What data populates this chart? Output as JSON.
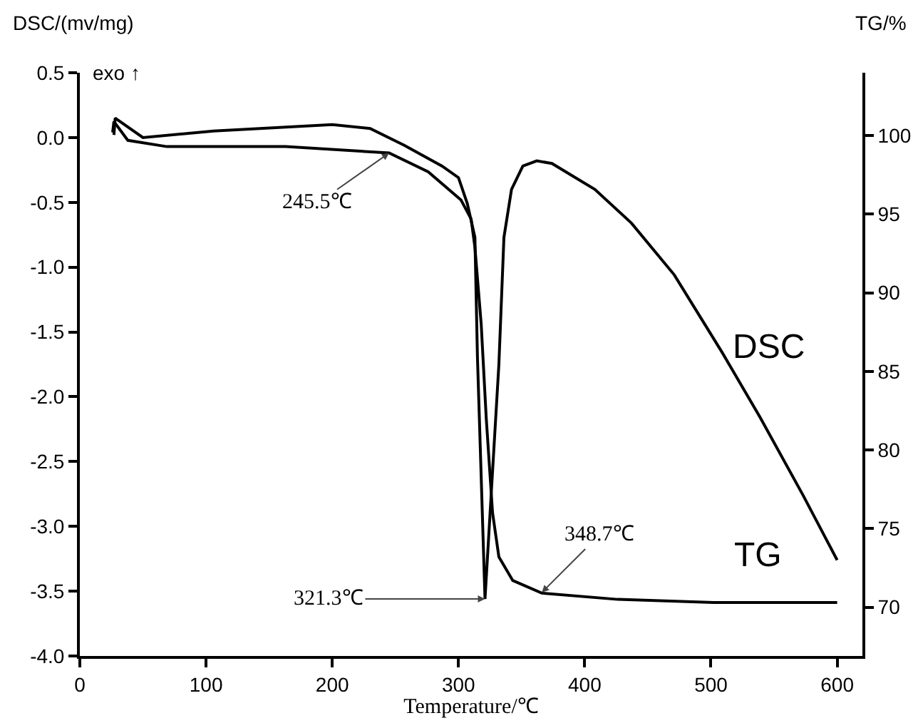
{
  "chart_data": {
    "type": "line",
    "xlabel": "Temperature/℃",
    "ylabel": "DSC/(mv/mg)",
    "y2label": "TG/%",
    "xlim": [
      0,
      620
    ],
    "xticks": [
      0,
      100,
      200,
      300,
      400,
      500,
      600
    ],
    "ylim": [
      -4,
      0.5
    ],
    "yticks": [
      {
        "value": -4,
        "label": "-4.0"
      },
      {
        "value": -3.5,
        "label": "-3.5"
      },
      {
        "value": -3,
        "label": "-3.0"
      },
      {
        "value": -2.5,
        "label": "-2.5"
      },
      {
        "value": -2,
        "label": "-2.0"
      },
      {
        "value": -1.5,
        "label": "-1.5"
      },
      {
        "value": -1,
        "label": "-1.0"
      },
      {
        "value": -0.5,
        "label": "-0.5"
      },
      {
        "value": 0,
        "label": "0.0"
      },
      {
        "value": 0.5,
        "label": "0.5"
      }
    ],
    "y2lim": [
      66.9,
      104
    ],
    "y2ticks": [
      70,
      75,
      80,
      85,
      90,
      95,
      100
    ],
    "grid": false,
    "legend": false,
    "marker": "none",
    "line_style": "solid",
    "series": [
      {
        "name": "DSC",
        "color": "#000000",
        "x": [
          27,
          28,
          50,
          106,
          200,
          230,
          257,
          287,
          300,
          307,
          313,
          315,
          321,
          332,
          336,
          342,
          351,
          362,
          374,
          408,
          437,
          471,
          509,
          539,
          573,
          600
        ],
        "values": [
          0.02,
          0.15,
          0.0,
          0.05,
          0.1,
          0.07,
          -0.06,
          -0.22,
          -0.31,
          -0.51,
          -0.77,
          -1.69,
          -3.56,
          -1.75,
          -0.77,
          -0.4,
          -0.22,
          -0.18,
          -0.2,
          -0.4,
          -0.66,
          -1.06,
          -1.66,
          -2.16,
          -2.76,
          -3.26
        ]
      },
      {
        "name": "TG",
        "color": "#000000",
        "axis": "y2",
        "x": [
          26,
          27,
          38,
          69,
          163,
          245,
          276,
          302,
          310,
          313,
          318,
          322,
          327,
          332,
          343,
          366,
          426,
          502,
          600
        ],
        "values": [
          100.2,
          100.9,
          99.7,
          99.3,
          99.3,
          98.9,
          97.7,
          95.9,
          94.7,
          92.9,
          88,
          82,
          76,
          73.2,
          71.7,
          70.9,
          70.5,
          70.3,
          70.3
        ]
      }
    ],
    "annotations": [
      "exo ↑",
      {
        "text": "245.5℃",
        "x": 245,
        "y": -0.12
      },
      {
        "text": "321.3℃",
        "x": 321,
        "y": -3.56
      },
      {
        "text": "348.7℃",
        "x": 366,
        "y": -3.51
      }
    ]
  }
}
